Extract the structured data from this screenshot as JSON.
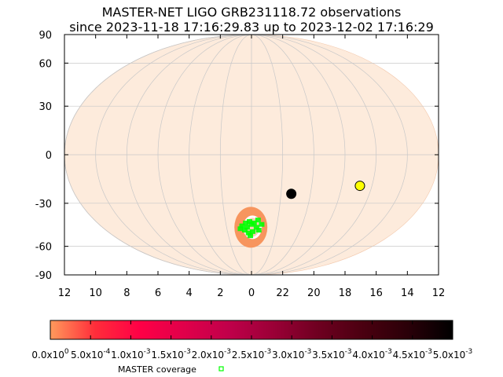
{
  "chart_data": {
    "type": "scatter",
    "title": "MASTER-NET LIGO GRB231118.72 observations",
    "subtitle": "since 2023-11-18 17:16:29.83 up to 2023-12-02 17:16:29",
    "projection": "mollweide",
    "xlabel": "",
    "ylabel": "",
    "y_ticks": [
      "90",
      "60",
      "30",
      "0",
      "-30",
      "-60",
      "-90"
    ],
    "x_ticks": [
      "12",
      "10",
      "8",
      "6",
      "4",
      "2",
      "0",
      "22",
      "20",
      "18",
      "16",
      "14",
      "12"
    ],
    "grid": true,
    "colors": {
      "sky_fill": "#fdebdc",
      "grid": "#c8c8c8",
      "probability_region": "#f7955e",
      "coverage": "#00ff00",
      "sun": "#000000",
      "moon": "#ffff00"
    },
    "probability_region": {
      "ra_hours": 0.05,
      "dec_deg": -46
    },
    "markers": [
      {
        "name": "black-circle",
        "ra_hours": 21.3,
        "dec_deg": -24
      },
      {
        "name": "yellow-circle",
        "ra_hours": 16.8,
        "dec_deg": -19
      }
    ],
    "coverage_points": [
      {
        "ra_hours": 0.0,
        "dec_deg": -44
      },
      {
        "ra_hours": 0.15,
        "dec_deg": -42
      },
      {
        "ra_hours": 0.35,
        "dec_deg": -46
      },
      {
        "ra_hours": 0.55,
        "dec_deg": -48
      },
      {
        "ra_hours": 0.75,
        "dec_deg": -45
      },
      {
        "ra_hours": 0.9,
        "dec_deg": -47
      },
      {
        "ra_hours": 23.8,
        "dec_deg": -43
      },
      {
        "ra_hours": 23.6,
        "dec_deg": -46
      },
      {
        "ra_hours": 23.4,
        "dec_deg": -48
      },
      {
        "ra_hours": 23.2,
        "dec_deg": -44
      },
      {
        "ra_hours": 0.25,
        "dec_deg": -50
      },
      {
        "ra_hours": 23.9,
        "dec_deg": -49
      },
      {
        "ra_hours": 0.45,
        "dec_deg": -43
      },
      {
        "ra_hours": 23.5,
        "dec_deg": -41
      },
      {
        "ra_hours": 0.1,
        "dec_deg": -52
      }
    ],
    "colorbar": {
      "range": [
        0,
        0.005
      ],
      "colors": [
        "#ff9a5c",
        "#ff2d3a",
        "#ff0046",
        "#e0004a",
        "#c0004a",
        "#9a0036",
        "#6e0020",
        "#4a0010",
        "#2a0008",
        "#000000"
      ],
      "ticks": [
        {
          "base": "0.0x10",
          "exp": "0"
        },
        {
          "base": "5.0x10",
          "exp": "-4"
        },
        {
          "base": "1.0x10",
          "exp": "-3"
        },
        {
          "base": "1.5x10",
          "exp": "-3"
        },
        {
          "base": "2.0x10",
          "exp": "-3"
        },
        {
          "base": "2.5x10",
          "exp": "-3"
        },
        {
          "base": "3.0x10",
          "exp": "-3"
        },
        {
          "base": "3.5x10",
          "exp": "-3"
        },
        {
          "base": "4.0x10",
          "exp": "-3"
        },
        {
          "base": "4.5x10",
          "exp": "-3"
        },
        {
          "base": "5.0x10",
          "exp": "-3"
        }
      ]
    },
    "legend": {
      "label": "MASTER coverage",
      "color": "#00ff00"
    }
  }
}
